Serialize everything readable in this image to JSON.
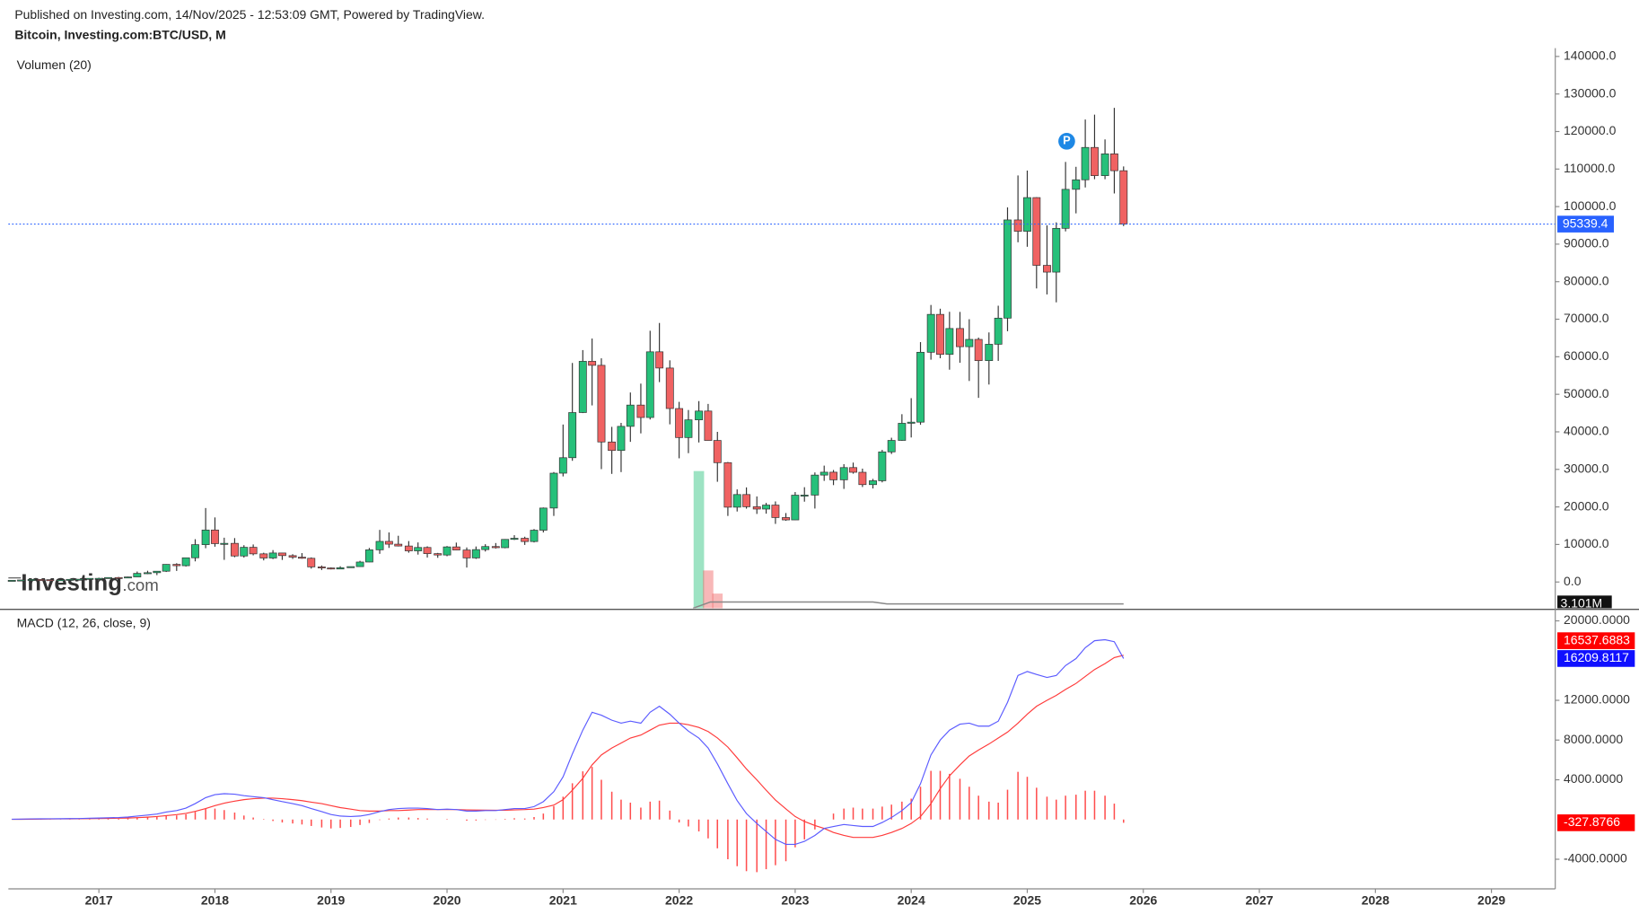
{
  "header": {
    "published": "Published on Investing.com, 14/Nov/2025 - 12:53:09 GMT, Powered by TradingView.",
    "logo_main": "Investing",
    "logo_suffix": ".com"
  },
  "chart_data": [
    {
      "type": "candlestick",
      "title": "Bitcoin, Investing.com:BTC/USD, M",
      "x": [
        2016.25,
        2016.33,
        2016.42,
        2016.5,
        2016.58,
        2016.67,
        2016.75,
        2016.83,
        2016.92,
        2017,
        2017.08,
        2017.17,
        2017.25,
        2017.33,
        2017.42,
        2017.5,
        2017.58,
        2017.67,
        2017.75,
        2017.83,
        2017.92,
        2018,
        2018.08,
        2018.17,
        2018.25,
        2018.33,
        2018.42,
        2018.5,
        2018.58,
        2018.67,
        2018.75,
        2018.83,
        2018.92,
        2019,
        2019.08,
        2019.17,
        2019.25,
        2019.33,
        2019.42,
        2019.5,
        2019.58,
        2019.67,
        2019.75,
        2019.83,
        2019.92,
        2020,
        2020.08,
        2020.17,
        2020.25,
        2020.33,
        2020.42,
        2020.5,
        2020.58,
        2020.67,
        2020.75,
        2020.83,
        2020.92,
        2021,
        2021.08,
        2021.17,
        2021.25,
        2021.33,
        2021.42,
        2021.5,
        2021.58,
        2021.67,
        2021.75,
        2021.83,
        2021.92,
        2022,
        2022.08,
        2022.17,
        2022.25,
        2022.33,
        2022.42,
        2022.5,
        2022.58,
        2022.67,
        2022.75,
        2022.83,
        2022.92,
        2023,
        2023.08,
        2023.17,
        2023.25,
        2023.33,
        2023.42,
        2023.5,
        2023.58,
        2023.67,
        2023.75,
        2023.83,
        2023.92,
        2024,
        2024.08,
        2024.17,
        2024.25,
        2024.33,
        2024.42,
        2024.5,
        2024.58,
        2024.67,
        2024.75,
        2024.83,
        2024.92,
        2025,
        2025.08,
        2025.17,
        2025.25,
        2025.33,
        2025.42,
        2025.5,
        2025.58,
        2025.67,
        2025.75,
        2025.83
      ],
      "open": [
        416,
        448,
        531,
        673,
        624,
        575,
        609,
        701,
        742,
        964,
        970,
        1190,
        1080,
        1348,
        2300,
        2480,
        2875,
        4700,
        4340,
        6450,
        9950,
        13850,
        10220,
        10300,
        6930,
        9240,
        7500,
        6390,
        7730,
        7030,
        6620,
        6320,
        4020,
        3740,
        3460,
        3810,
        4100,
        5320,
        8570,
        10820,
        10080,
        9590,
        8290,
        9200,
        7560,
        7190,
        9350,
        8520,
        6410,
        8630,
        9450,
        9140,
        11350,
        11650,
        10780,
        13800,
        19700,
        28990,
        33110,
        45140,
        58790,
        57720,
        37300,
        35040,
        41460,
        47130,
        43820,
        61320,
        57000,
        46210,
        38480,
        43190,
        45540,
        37710,
        31790,
        19930,
        23300,
        20050,
        19430,
        20490,
        17170,
        16540,
        23130,
        23150,
        28480,
        29250,
        27220,
        30480,
        29230,
        25940,
        26970,
        34660,
        37720,
        42280,
        42580,
        61200,
        71290,
        60640,
        67530,
        62680,
        64630,
        58970,
        63330,
        70290,
        96450,
        93430,
        102400,
        84350,
        82550,
        94210,
        104600,
        107140,
        115760,
        108250,
        114050,
        109560
      ],
      "high": [
        466,
        550,
        780,
        704,
        627,
        628,
        720,
        755,
        980,
        1150,
        1210,
        1350,
        1420,
        2790,
        3000,
        2930,
        4740,
        5000,
        6470,
        11400,
        19700,
        17200,
        11800,
        11700,
        9800,
        10000,
        7800,
        8500,
        7760,
        7400,
        7700,
        6550,
        4390,
        3880,
        4190,
        4100,
        5640,
        9070,
        13880,
        13200,
        12320,
        10900,
        10540,
        9500,
        7750,
        9580,
        10500,
        9200,
        9460,
        10070,
        10380,
        11430,
        12470,
        12060,
        14100,
        19850,
        29300,
        41950,
        58350,
        61780,
        64850,
        59590,
        41330,
        42390,
        50480,
        52850,
        66930,
        69000,
        59050,
        47990,
        45820,
        48190,
        47440,
        40000,
        31970,
        24670,
        25200,
        22790,
        21080,
        21460,
        18370,
        23960,
        25250,
        29190,
        31000,
        29840,
        31390,
        31810,
        30200,
        27470,
        35200,
        38430,
        44700,
        48970,
        63900,
        73800,
        72800,
        71980,
        71950,
        70000,
        65100,
        66480,
        73600,
        99800,
        108300,
        109600,
        102500,
        95000,
        95800,
        111900,
        110600,
        123200,
        124500,
        117900,
        126300,
        110700
      ],
      "low": [
        412,
        437,
        530,
        607,
        470,
        594,
        606,
        686,
        740,
        750,
        920,
        890,
        1060,
        1340,
        2100,
        1830,
        2670,
        2950,
        4120,
        5500,
        9000,
        9400,
        5900,
        6600,
        6500,
        7100,
        5760,
        6100,
        5880,
        6150,
        6200,
        3560,
        3200,
        3350,
        3400,
        3760,
        4070,
        5280,
        7510,
        9080,
        9470,
        7800,
        7300,
        6520,
        6440,
        6870,
        8450,
        3850,
        6150,
        8120,
        8910,
        8990,
        11200,
        9880,
        10540,
        13200,
        17600,
        28130,
        32290,
        45000,
        47040,
        30070,
        28800,
        29280,
        37330,
        39590,
        43290,
        53250,
        42000,
        32950,
        34320,
        37170,
        37700,
        26700,
        17600,
        18780,
        19540,
        18130,
        18200,
        15480,
        16300,
        16500,
        21400,
        19570,
        26940,
        25810,
        24800,
        28860,
        25300,
        24920,
        26540,
        34100,
        37600,
        38500,
        41880,
        59220,
        59600,
        56560,
        58400,
        53550,
        49050,
        52600,
        58900,
        66800,
        90500,
        89300,
        78200,
        76600,
        74500,
        93400,
        98200,
        105100,
        107300,
        107300,
        103500,
        94800
      ],
      "close": [
        448,
        531,
        673,
        624,
        575,
        609,
        701,
        742,
        964,
        970,
        1190,
        1080,
        1348,
        2300,
        2480,
        2875,
        4700,
        4340,
        6450,
        9950,
        13850,
        10220,
        10300,
        6930,
        9240,
        7500,
        6390,
        7730,
        7030,
        6620,
        6320,
        4020,
        3740,
        3460,
        3810,
        4100,
        5320,
        8570,
        10820,
        10080,
        9590,
        8290,
        9200,
        7560,
        7190,
        9350,
        8520,
        6410,
        8630,
        9450,
        9140,
        11350,
        11650,
        10780,
        13800,
        19700,
        28990,
        33110,
        45140,
        58790,
        57720,
        37300,
        35040,
        41460,
        47130,
        43820,
        61320,
        57000,
        46210,
        38480,
        43190,
        45540,
        37710,
        31790,
        19930,
        23300,
        20050,
        19430,
        20490,
        17170,
        16540,
        23130,
        23150,
        28480,
        29250,
        27220,
        30480,
        29230,
        25940,
        26970,
        34660,
        37720,
        42280,
        42580,
        61200,
        71290,
        60640,
        67530,
        62680,
        64630,
        58970,
        63330,
        70290,
        96450,
        93430,
        102400,
        84350,
        82550,
        94210,
        104600,
        107140,
        115760,
        108250,
        114050,
        109560,
        95339.4
      ],
      "up_color": "#26c07a",
      "down_color": "#f06262",
      "wick_color": "#333333",
      "last_line_color": "#2962ff",
      "xlim": [
        2016.22,
        2029.55
      ],
      "ylim": [
        -7000,
        142200
      ],
      "yticks": [
        {
          "value": 0,
          "label": "0.0"
        },
        {
          "value": 10000,
          "label": "10000.0"
        },
        {
          "value": 20000,
          "label": "20000.0"
        },
        {
          "value": 30000,
          "label": "30000.0"
        },
        {
          "value": 40000,
          "label": "40000.0"
        },
        {
          "value": 50000,
          "label": "50000.0"
        },
        {
          "value": 60000,
          "label": "60000.0"
        },
        {
          "value": 70000,
          "label": "70000.0"
        },
        {
          "value": 80000,
          "label": "80000.0"
        },
        {
          "value": 90000,
          "label": "90000.0"
        },
        {
          "value": 100000,
          "label": "100000.0"
        },
        {
          "value": 110000,
          "label": "110000.0"
        },
        {
          "value": 120000,
          "label": "120000.0"
        },
        {
          "value": 130000,
          "label": "130000.0"
        },
        {
          "value": 140000,
          "label": "140000.0"
        }
      ],
      "marker": {
        "label": "P",
        "x": 2025.34,
        "y": 117400,
        "color": "#1e88e5"
      },
      "volume": {
        "name": "Volumen (20)",
        "x": [
          2022.17,
          2022.25,
          2022.33
        ],
        "values": [
          98,
          27,
          10.5
        ],
        "colors": [
          "#26c07a",
          "#f06262",
          "#f06262"
        ],
        "ylim": [
          0,
          400
        ],
        "ma": {
          "x": [
            2022.12,
            2022.27,
            2023.67,
            2023.79,
            2025.83
          ],
          "values": [
            0,
            4.5,
            4.5,
            3.101,
            3.101
          ],
          "color": "#888888",
          "last_label": "3.101M"
        }
      }
    },
    {
      "type": "macd",
      "title": "MACD (12, 26, close, 9)",
      "xlim": [
        2016.22,
        2029.55
      ],
      "xticks": [
        2017,
        2018,
        2019,
        2020,
        2021,
        2022,
        2023,
        2024,
        2025,
        2026,
        2027,
        2028,
        2029
      ],
      "ylim": [
        -6980,
        20950
      ],
      "yticks": [
        {
          "value": 20000,
          "label": "20000.0000"
        },
        {
          "value": 12000,
          "label": "12000.0000"
        },
        {
          "value": 8000,
          "label": "8000.0000"
        },
        {
          "value": 4000,
          "label": "4000.0000"
        },
        {
          "value": -4000,
          "label": "-4000.0000"
        }
      ],
      "macd": {
        "color": "#5b5bff",
        "values": [
          30,
          40,
          60,
          70,
          75,
          80,
          90,
          100,
          130,
          150,
          180,
          200,
          250,
          350,
          450,
          550,
          750,
          900,
          1150,
          1600,
          2200,
          2500,
          2600,
          2550,
          2400,
          2300,
          2200,
          2000,
          1800,
          1600,
          1400,
          1100,
          800,
          500,
          350,
          300,
          350,
          500,
          800,
          1000,
          1100,
          1150,
          1150,
          1100,
          1000,
          1050,
          1000,
          850,
          850,
          900,
          900,
          1000,
          1100,
          1100,
          1300,
          1800,
          2800,
          4300,
          6600,
          9000,
          10800,
          10500,
          10000,
          9700,
          9900,
          9700,
          10800,
          11400,
          10600,
          9700,
          8900,
          8200,
          7200,
          5600,
          3600,
          1900,
          600,
          -400,
          -1200,
          -2000,
          -2500,
          -2500,
          -2200,
          -1600,
          -900,
          -700,
          -500,
          -600,
          -700,
          -700,
          -300,
          200,
          900,
          1700,
          3600,
          6500,
          8000,
          9000,
          9600,
          9700,
          9400,
          9400,
          9900,
          11800,
          14500,
          14900,
          14600,
          14300,
          14500,
          15500,
          16200,
          17300,
          18000,
          18100,
          17900,
          16209.8117
        ]
      },
      "signal": {
        "color": "#ff3b3b",
        "values": [
          20,
          25,
          35,
          45,
          55,
          60,
          70,
          75,
          85,
          95,
          110,
          130,
          150,
          190,
          240,
          300,
          390,
          490,
          620,
          820,
          1100,
          1400,
          1650,
          1850,
          2000,
          2100,
          2150,
          2150,
          2100,
          2000,
          1900,
          1750,
          1600,
          1400,
          1200,
          1050,
          900,
          850,
          850,
          900,
          900,
          950,
          1000,
          1000,
          1000,
          1000,
          1000,
          970,
          950,
          940,
          930,
          940,
          970,
          1000,
          1050,
          1200,
          1450,
          2000,
          2950,
          4150,
          5500,
          6500,
          7200,
          7700,
          8200,
          8500,
          9000,
          9500,
          9700,
          9700,
          9540,
          9270,
          8860,
          8210,
          7290,
          6210,
          5090,
          3990,
          2950,
          1960,
          1070,
          300,
          -200,
          -600,
          -900,
          -1300,
          -1600,
          -1800,
          -1800,
          -1800,
          -1600,
          -1300,
          -900,
          -400,
          300,
          1600,
          3100,
          4400,
          5500,
          6400,
          7000,
          7600,
          8200,
          8800,
          9700,
          10600,
          11400,
          12000,
          12500,
          13100,
          13700,
          14400,
          15100,
          15700,
          16300,
          16537.6883
        ]
      },
      "histogram": {
        "color": "#ff4d4d",
        "values": [
          10,
          15,
          25,
          25,
          20,
          20,
          20,
          25,
          45,
          55,
          70,
          70,
          100,
          160,
          210,
          250,
          360,
          410,
          530,
          780,
          1100,
          1100,
          950,
          700,
          400,
          200,
          50,
          -150,
          -300,
          -400,
          -500,
          -650,
          -800,
          -900,
          -850,
          -750,
          -550,
          -350,
          -50,
          100,
          200,
          200,
          150,
          100,
          0,
          50,
          0,
          -120,
          -100,
          -40,
          -30,
          60,
          130,
          100,
          250,
          600,
          1350,
          2300,
          3650,
          4850,
          5300,
          4000,
          2800,
          2000,
          1700,
          1200,
          1800,
          1900,
          900,
          -300,
          -700,
          -1200,
          -1900,
          -2900,
          -4000,
          -4700,
          -5200,
          -5300,
          -5000,
          -4600,
          -4200,
          -2800,
          -2000,
          -1000,
          0,
          600,
          1100,
          1200,
          1100,
          1100,
          1300,
          1500,
          1800,
          2100,
          3300,
          4900,
          4900,
          4600,
          4100,
          3300,
          2400,
          1800,
          1700,
          3000,
          4800,
          4300,
          3200,
          2300,
          2000,
          2400,
          2500,
          2900,
          2900,
          2400,
          1600,
          -327.8766
        ]
      }
    }
  ]
}
